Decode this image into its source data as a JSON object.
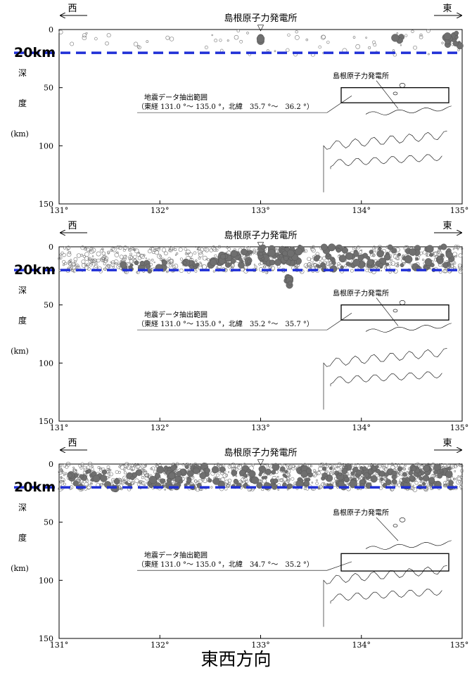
{
  "chart_data": [
    {
      "type": "scatter",
      "title": "島根原子力発電所",
      "direction_labels": {
        "west": "西",
        "east": "東"
      },
      "ylabel": [
        "深",
        "度",
        "(km)"
      ],
      "xticks": [
        "131°",
        "132°",
        "133°",
        "134°",
        "135°"
      ],
      "yticks": [
        "0",
        "50",
        "100",
        "150"
      ],
      "xlim": [
        131.0,
        135.0
      ],
      "ylim": [
        0,
        150
      ],
      "reference_line": {
        "depth_km": 20,
        "label": "20km",
        "color": "#1f2fd6"
      },
      "inset": {
        "plant_label": "島根原子力発電所",
        "range_title": "地震データ抽出範囲",
        "range_text": "（東経 131.0 °～ 135.0 °，北緯　35.7 °～　36.2 °）",
        "lat_range": [
          35.7,
          36.2
        ]
      },
      "marker": "▽",
      "series": [
        {
          "density": "sparse"
        }
      ]
    },
    {
      "type": "scatter",
      "title": "島根原子力発電所",
      "direction_labels": {
        "west": "西",
        "east": "東"
      },
      "ylabel": [
        "深",
        "度",
        "(km)"
      ],
      "xticks": [
        "131°",
        "132°",
        "133°",
        "134°",
        "135°"
      ],
      "yticks": [
        "0",
        "50",
        "100",
        "150"
      ],
      "xlim": [
        131.0,
        135.0
      ],
      "ylim": [
        0,
        150
      ],
      "reference_line": {
        "depth_km": 20,
        "label": "20km",
        "color": "#1f2fd6"
      },
      "inset": {
        "plant_label": "島根原子力発電所",
        "range_title": "地震データ抽出範囲",
        "range_text": "（東経 131.0 °～ 135.0 °，北緯　35.2 °～　35.7 °）",
        "lat_range": [
          35.2,
          35.7
        ]
      },
      "marker": "▽",
      "series": [
        {
          "density": "dense"
        }
      ]
    },
    {
      "type": "scatter",
      "title": "島根原子力発電所",
      "direction_labels": {
        "west": "西",
        "east": "東"
      },
      "ylabel": [
        "深",
        "度",
        "(km)"
      ],
      "xticks": [
        "131°",
        "132°",
        "133°",
        "134°",
        "135°"
      ],
      "yticks": [
        "0",
        "50",
        "100",
        "150"
      ],
      "xlim": [
        131.0,
        135.0
      ],
      "ylim": [
        0,
        150
      ],
      "reference_line": {
        "depth_km": 20,
        "label": "20km",
        "color": "#1f2fd6"
      },
      "inset": {
        "plant_label": "島根原子力発電所",
        "range_title": "地震データ抽出範囲",
        "range_text": "（東経 131.0 °～ 135.0 °，北緯　34.7 °～　35.2 °）",
        "lat_range": [
          34.7,
          35.2
        ]
      },
      "marker": "▽",
      "series": [
        {
          "density": "very-dense"
        }
      ]
    }
  ],
  "caption": "東西方向"
}
